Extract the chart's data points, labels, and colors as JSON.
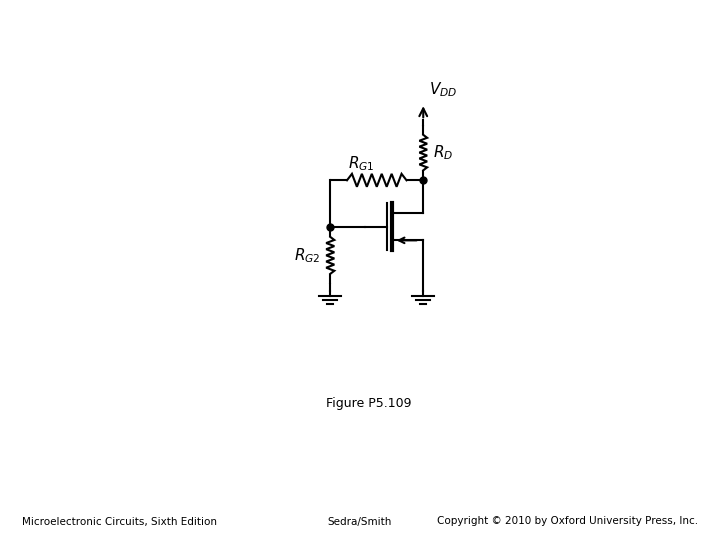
{
  "title": "Figure P5.109",
  "footer_left": "Microelectronic Circuits, Sixth Edition",
  "footer_center": "Sedra/Smith",
  "footer_right": "Copyright © 2010 by Oxford University Press, Inc.",
  "bg_color": "#ffffff",
  "line_color": "#000000",
  "VDD_label": "$V_{DD}$",
  "RD_label": "$R_D$",
  "RG1_label": "$R_{G1}$",
  "RG2_label": "$R_{G2}$",
  "fig_caption": "Figure P5.109"
}
